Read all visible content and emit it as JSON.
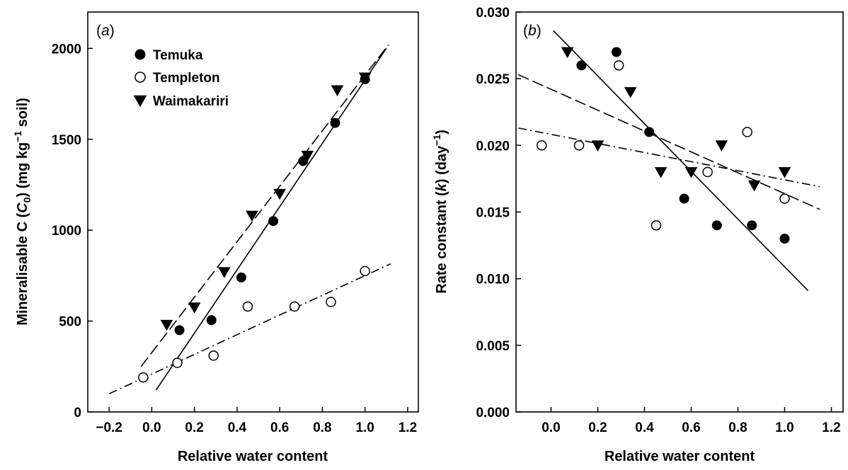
{
  "chart_data": [
    {
      "type": "scatter",
      "panel_label": "(a)",
      "xlabel": "Relative water content",
      "ylabel": "Mineralisable C (C0) (mg kg−1 soil)",
      "xlim": [
        -0.3,
        1.25
      ],
      "ylim": [
        0,
        2200
      ],
      "xticks": [
        -0.2,
        0.0,
        0.2,
        0.4,
        0.6,
        0.8,
        1.0,
        1.2
      ],
      "xtick_labels": [
        "−0.2",
        "0.0",
        "0.2",
        "0.4",
        "0.6",
        "0.8",
        "1.0",
        "1.2"
      ],
      "yticks": [
        0,
        500,
        1000,
        1500,
        2000
      ],
      "ytick_labels": [
        "0",
        "500",
        "1000",
        "1500",
        "2000"
      ],
      "legend_position": "top-left",
      "series": [
        {
          "name": "Temuka",
          "marker": "filled-circle",
          "x": [
            0.13,
            0.28,
            0.42,
            0.57,
            0.71,
            0.86,
            1.0
          ],
          "y": [
            450,
            505,
            740,
            1050,
            1380,
            1590,
            1830
          ],
          "fit": {
            "style": "solid",
            "x": [
              0.02,
              1.1
            ],
            "y": [
              120,
              2000
            ]
          }
        },
        {
          "name": "Templeton",
          "marker": "open-circle",
          "x": [
            -0.04,
            0.12,
            0.29,
            0.45,
            0.67,
            0.84,
            1.0
          ],
          "y": [
            190,
            270,
            310,
            580,
            580,
            605,
            775
          ],
          "fit": {
            "style": "dash-dot",
            "x": [
              -0.2,
              1.12
            ],
            "y": [
              100,
              815
            ]
          }
        },
        {
          "name": "Waimakariri",
          "marker": "filled-triangle-down",
          "x": [
            0.07,
            0.2,
            0.34,
            0.47,
            0.6,
            0.73,
            0.87,
            1.0
          ],
          "y": [
            480,
            575,
            770,
            1080,
            1200,
            1410,
            1770,
            1840
          ],
          "fit": {
            "style": "dashed",
            "x": [
              -0.05,
              1.11
            ],
            "y": [
              250,
              2020
            ]
          }
        }
      ]
    },
    {
      "type": "scatter",
      "panel_label": "(b)",
      "xlabel": "Relative water content",
      "ylabel": "Rate constant (k) (day−1)",
      "xlim": [
        -0.15,
        1.25
      ],
      "ylim": [
        0,
        0.03
      ],
      "xticks": [
        0.0,
        0.2,
        0.4,
        0.6,
        0.8,
        1.0,
        1.2
      ],
      "xtick_labels": [
        "0.0",
        "0.2",
        "0.4",
        "0.6",
        "0.8",
        "1.0",
        "1.2"
      ],
      "yticks": [
        0,
        0.005,
        0.01,
        0.015,
        0.02,
        0.025,
        0.03
      ],
      "ytick_labels": [
        "0.000",
        "0.005",
        "0.010",
        "0.015",
        "0.020",
        "0.025",
        "0.030"
      ],
      "series": [
        {
          "name": "Temuka",
          "marker": "filled-circle",
          "x": [
            0.13,
            0.28,
            0.42,
            0.57,
            0.71,
            0.86,
            1.0
          ],
          "y": [
            0.026,
            0.027,
            0.021,
            0.016,
            0.014,
            0.014,
            0.013
          ],
          "fit": {
            "style": "solid",
            "x": [
              0.01,
              1.1
            ],
            "y": [
              0.0286,
              0.0091
            ]
          }
        },
        {
          "name": "Templeton",
          "marker": "open-circle",
          "x": [
            -0.04,
            0.12,
            0.29,
            0.45,
            0.67,
            0.84,
            1.0
          ],
          "y": [
            0.02,
            0.02,
            0.026,
            0.014,
            0.018,
            0.021,
            0.016
          ],
          "fit": {
            "style": "dash-dot",
            "x": [
              -0.14,
              1.15
            ],
            "y": [
              0.0213,
              0.0169
            ]
          }
        },
        {
          "name": "Waimakariri",
          "marker": "filled-triangle-down",
          "x": [
            0.07,
            0.2,
            0.34,
            0.47,
            0.6,
            0.73,
            0.87,
            1.0
          ],
          "y": [
            0.027,
            0.02,
            0.024,
            0.018,
            0.018,
            0.02,
            0.017,
            0.018
          ],
          "fit": {
            "style": "dashed",
            "x": [
              -0.14,
              1.15
            ],
            "y": [
              0.0253,
              0.0152
            ]
          }
        }
      ]
    }
  ]
}
